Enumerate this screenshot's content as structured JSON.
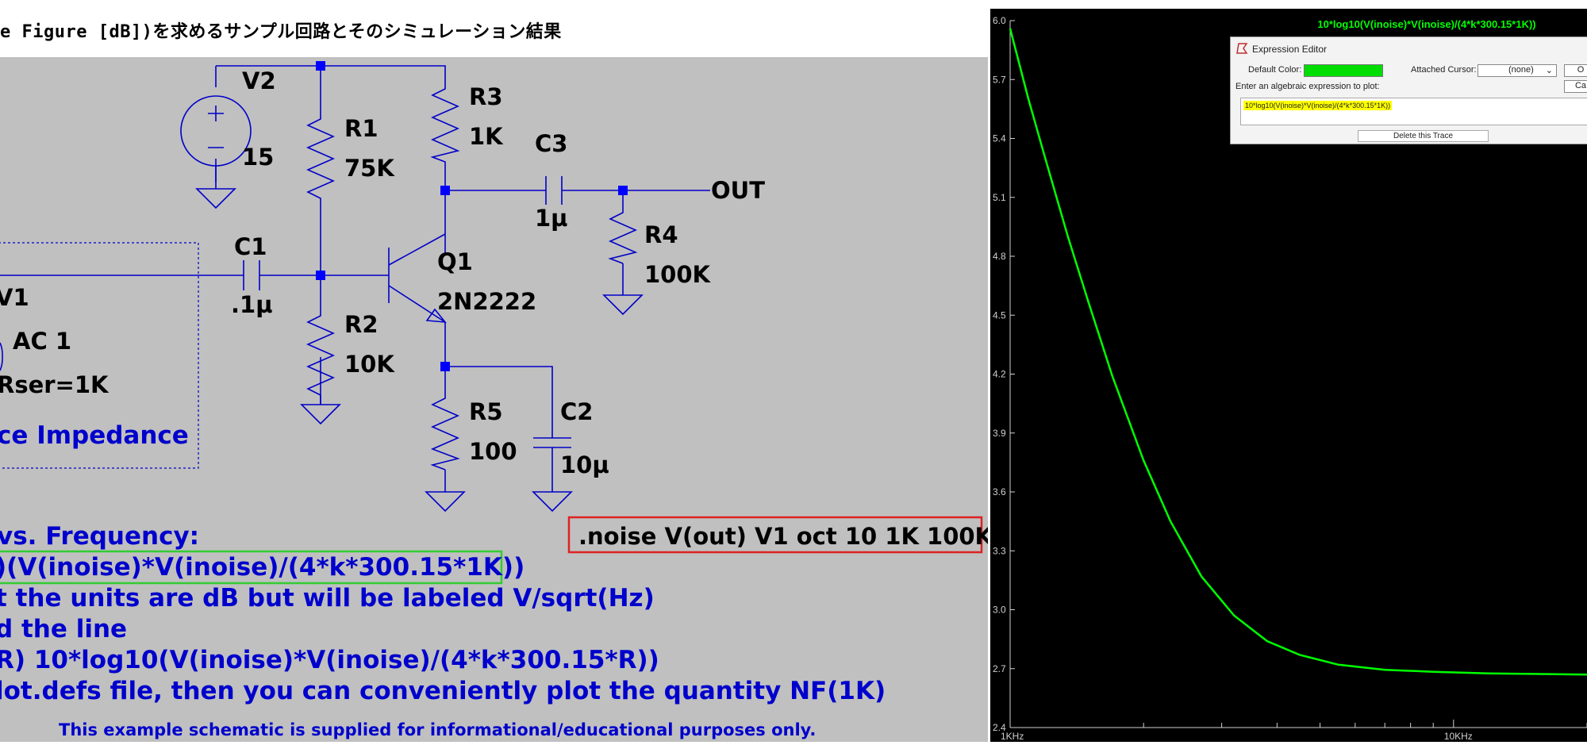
{
  "window_title": "e Figure [dB])を求めるサンプル回路とそのシミュレーション結果",
  "schematic": {
    "components": {
      "v2_name": "V2",
      "v2_value": "15",
      "r1_name": "R1",
      "r1_value": "75K",
      "r2_name": "R2",
      "r2_value": "10K",
      "r3_name": "R3",
      "r3_value": "1K",
      "r4_name": "R4",
      "r4_value": "100K",
      "r5_name": "R5",
      "r5_value": "100",
      "c1_name": "C1",
      "c1_value": ".1µ",
      "c2_name": "C2",
      "c2_value": "10µ",
      "c3_name": "C3",
      "c3_value": "1µ",
      "q1_name": "Q1",
      "q1_value": "2N2222",
      "v1_name": "V1",
      "v1_value": "AC 1",
      "v1_rser": "Rser=1K",
      "out_label": "OUT",
      "source_impedance_label": "ce Impedance"
    },
    "directive": ".noise V(out) V1 oct 10 1K 100K",
    "notes": {
      "line1": "vs. Frequency:",
      "line2": ")(V(inoise)*V(inoise)/(4*k*300.15*1K))",
      "line3": "t the units are dB but will be labeled V/sqrt(Hz)",
      "line4": "d the line",
      "line5": "R) 10*log10(V(inoise)*V(inoise)/(4*k*300.15*R))",
      "line6": "lot.defs file, then you can conveniently plot the quantity NF(1K)",
      "disclaimer": "This example schematic is supplied for informational/educational purposes only."
    }
  },
  "expression_editor": {
    "title": "Expression Editor",
    "default_color_label": "Default Color:",
    "attached_cursor_label": "Attached Cursor:",
    "attached_cursor_value": "(none)",
    "prompt": "Enter an algebraic expression to plot:",
    "expression": "10*log10(V(inoise)*V(inoise)/(4*k*300.15*1K))",
    "delete_button": "Delete this Trace",
    "ok_button": "O",
    "cancel_button": "Ca",
    "trace_color": "#00dd00"
  },
  "chart_data": {
    "type": "line",
    "title": "10*log10(V(inoise)*V(inoise)/(4*k*300.15*1K))",
    "xscale": "log",
    "xlim": [
      1000,
      20000
    ],
    "ylim": [
      2.4,
      6.0
    ],
    "yticks": [
      "6.0",
      "5.7",
      "5.4",
      "5.1",
      "4.8",
      "4.5",
      "4.2",
      "3.9",
      "3.6",
      "3.3",
      "3.0",
      "2.7",
      "2.4"
    ],
    "xticks": [
      "1KHz",
      "10KHz"
    ],
    "grid": false,
    "series": [
      {
        "color": "#00ff00",
        "x": [
          1000,
          1100,
          1200,
          1350,
          1500,
          1700,
          2000,
          2300,
          2700,
          3200,
          3800,
          4500,
          5500,
          7000,
          9000,
          12000,
          15000,
          20000
        ],
        "y": [
          5.96,
          5.6,
          5.3,
          4.9,
          4.57,
          4.19,
          3.76,
          3.45,
          3.17,
          2.97,
          2.84,
          2.77,
          2.72,
          2.694,
          2.684,
          2.676,
          2.673,
          2.67
        ]
      }
    ]
  },
  "colors": {
    "schematic_bg": "#c0c0c0",
    "wire": "#0000c8",
    "note_text": "#0000cc",
    "directive_box": "#dd2222",
    "highlight_box": "#33cc33",
    "plot_bg": "#000000"
  }
}
